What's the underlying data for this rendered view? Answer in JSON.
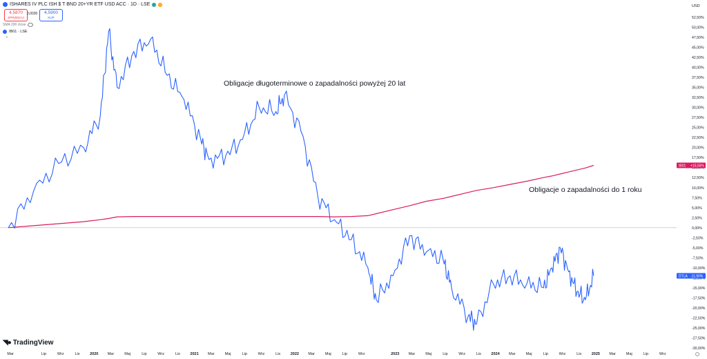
{
  "header": {
    "title": "ISHARES IV PLC ISH $ T BND 20+YR ETF USD ACC · 1D · LSE",
    "sell_price": "4,5870",
    "sell_label": "SPRZEDAJ",
    "spread": "0,0030",
    "buy_price": "4,5900",
    "buy_label": "KUP",
    "sma_label": "SMA 200 close",
    "compare_symbol": "IB01 · LSE",
    "brand": "TradingView",
    "currency": "USD"
  },
  "annotations": {
    "long_bonds": "Obligacje długoterminowe o zapadalności powyżej 20 lat",
    "short_bonds": "Obligacje o zapadalności do 1 roku"
  },
  "chart_data": {
    "type": "line",
    "title": "",
    "xlabel": "",
    "ylabel": "",
    "ylim": [
      -30,
      55
    ],
    "y_unit": "%",
    "grid": false,
    "y_ticks": [
      "52,50%",
      "50,00%",
      "47,50%",
      "45,00%",
      "42,50%",
      "40,00%",
      "37,50%",
      "35,00%",
      "32,50%",
      "30,00%",
      "27,50%",
      "25,00%",
      "22,50%",
      "20,00%",
      "17,50%",
      "15,00%",
      "12,50%",
      "10,00%",
      "7,50%",
      "5,00%",
      "2,50%",
      "0,00%",
      "-2,50%",
      "-5,00%",
      "-7,50%",
      "-10,00%",
      "-12,50%",
      "-15,00%",
      "-17,50%",
      "-20,00%",
      "-22,50%",
      "-25,00%",
      "-27,50%",
      "-30,00%"
    ],
    "x_ticks": [
      "Mar",
      "Lip",
      "Wrz",
      "Lis",
      "2020",
      "Mar",
      "Maj",
      "Lip",
      "Wrz",
      "Lis",
      "2021",
      "Mar",
      "Maj",
      "Lip",
      "Wrz",
      "Lis",
      "2022",
      "Mar",
      "Maj",
      "Lip",
      "Wrz",
      "2023",
      "Mar",
      "Maj",
      "Lip",
      "Wrz",
      "Lis",
      "2024",
      "Mar",
      "Maj",
      "Lip",
      "Wrz",
      "Lis",
      "2025",
      "Mar",
      "Maj",
      "Lip",
      "Wrz"
    ],
    "x": [
      "2019-03",
      "2019-06",
      "2019-09",
      "2019-12",
      "2020-02",
      "2020-03",
      "2020-04",
      "2020-06",
      "2020-08",
      "2020-10",
      "2020-12",
      "2021-02",
      "2021-03",
      "2021-05",
      "2021-07",
      "2021-09",
      "2021-11",
      "2021-12",
      "2022-02",
      "2022-04",
      "2022-06",
      "2022-08",
      "2022-10",
      "2022-11",
      "2023-01",
      "2023-03",
      "2023-05",
      "2023-07",
      "2023-08",
      "2023-10",
      "2023-11",
      "2024-01",
      "2024-03",
      "2024-05",
      "2024-07",
      "2024-08",
      "2024-09",
      "2024-10",
      "2024-11",
      "2024-12",
      "2025-01"
    ],
    "series": [
      {
        "name": "DTLA",
        "color": "#2962ff",
        "end_label": "-11,90%",
        "values": [
          0,
          9,
          16,
          20,
          28,
          49,
          35,
          44,
          47,
          38,
          32,
          22,
          17,
          18,
          22,
          30,
          29,
          33,
          24,
          8,
          2,
          -3,
          -10,
          -18,
          -12,
          -2,
          -6,
          -8,
          -15,
          -22,
          -24,
          -14,
          -12,
          -14,
          -15,
          -10,
          -5,
          -11,
          -16,
          -18,
          -12
        ]
      },
      {
        "name": "IB01",
        "color": "#d81b60",
        "end_label": "+15,55%",
        "values": [
          0,
          0.5,
          1,
          1.5,
          2,
          2.3,
          2.7,
          2.8,
          2.8,
          2.8,
          2.8,
          2.8,
          2.8,
          2.8,
          2.8,
          2.8,
          2.8,
          2.8,
          2.8,
          2.8,
          2.7,
          2.8,
          3,
          3.5,
          4.5,
          5.5,
          6.6,
          7.3,
          7.8,
          8.8,
          9.3,
          10,
          10.8,
          11.6,
          12.5,
          12.9,
          13.4,
          13.9,
          14.4,
          14.9,
          15.55
        ]
      }
    ]
  }
}
